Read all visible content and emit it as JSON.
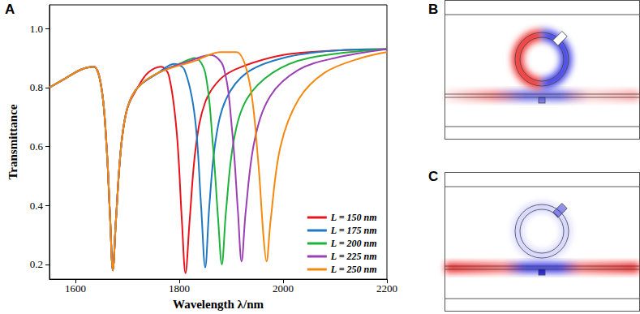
{
  "chart_data": {
    "type": "line",
    "xlabel": "Wavelength λ/nm",
    "ylabel": "Transmittance",
    "xlim": [
      1550,
      2200
    ],
    "xticks": [
      1600,
      1800,
      2000,
      2200
    ],
    "ylim": [
      0.15,
      1.08
    ],
    "yticks": [
      0.2,
      0.4,
      0.6,
      0.8,
      {
        "value": 1,
        "label": "1.0"
      }
    ],
    "grid": false,
    "legend": "lower right",
    "series": [
      {
        "name": "L = 150 nm",
        "color": "#e8141c",
        "x": [
          1550,
          1580,
          1610,
          1635,
          1650,
          1660,
          1667,
          1672,
          1678,
          1688,
          1700,
          1720,
          1740,
          1765,
          1780,
          1795,
          1805,
          1812,
          1820,
          1832,
          1850,
          1880,
          1920,
          2000,
          2100,
          2200
        ],
        "values": [
          0.8,
          0.83,
          0.86,
          0.87,
          0.8,
          0.6,
          0.35,
          0.18,
          0.35,
          0.6,
          0.73,
          0.8,
          0.85,
          0.87,
          0.84,
          0.65,
          0.35,
          0.17,
          0.35,
          0.6,
          0.75,
          0.83,
          0.87,
          0.91,
          0.925,
          0.93
        ]
      },
      {
        "name": "L = 175 nm",
        "color": "#1f78c1",
        "x": [
          1550,
          1580,
          1610,
          1635,
          1650,
          1660,
          1667,
          1672,
          1678,
          1688,
          1700,
          1720,
          1760,
          1790,
          1810,
          1830,
          1842,
          1850,
          1858,
          1870,
          1890,
          1930,
          2000,
          2100,
          2200
        ],
        "values": [
          0.8,
          0.83,
          0.86,
          0.87,
          0.8,
          0.6,
          0.35,
          0.18,
          0.35,
          0.6,
          0.73,
          0.8,
          0.85,
          0.88,
          0.86,
          0.7,
          0.4,
          0.19,
          0.4,
          0.62,
          0.76,
          0.85,
          0.9,
          0.925,
          0.93
        ]
      },
      {
        "name": "L = 200 nm",
        "color": "#1db33a",
        "x": [
          1550,
          1580,
          1610,
          1635,
          1650,
          1660,
          1667,
          1672,
          1678,
          1688,
          1700,
          1720,
          1760,
          1800,
          1830,
          1850,
          1865,
          1875,
          1882,
          1890,
          1905,
          1930,
          1980,
          2050,
          2200
        ],
        "values": [
          0.8,
          0.83,
          0.86,
          0.87,
          0.8,
          0.6,
          0.35,
          0.18,
          0.35,
          0.6,
          0.73,
          0.8,
          0.85,
          0.88,
          0.9,
          0.85,
          0.6,
          0.35,
          0.2,
          0.38,
          0.62,
          0.76,
          0.85,
          0.9,
          0.93
        ]
      },
      {
        "name": "L = 225 nm",
        "color": "#9b3fb5",
        "x": [
          1550,
          1580,
          1610,
          1635,
          1650,
          1660,
          1667,
          1672,
          1678,
          1688,
          1700,
          1720,
          1760,
          1820,
          1860,
          1885,
          1902,
          1913,
          1920,
          1928,
          1945,
          1975,
          2030,
          2100,
          2200
        ],
        "values": [
          0.8,
          0.83,
          0.86,
          0.87,
          0.8,
          0.6,
          0.35,
          0.18,
          0.35,
          0.6,
          0.73,
          0.8,
          0.85,
          0.89,
          0.91,
          0.87,
          0.65,
          0.38,
          0.21,
          0.38,
          0.62,
          0.77,
          0.86,
          0.9,
          0.93
        ]
      },
      {
        "name": "L = 250 nm",
        "color": "#f5890f",
        "x": [
          1550,
          1580,
          1610,
          1635,
          1650,
          1660,
          1667,
          1672,
          1678,
          1688,
          1700,
          1720,
          1760,
          1830,
          1880,
          1910,
          1935,
          1952,
          1962,
          1968,
          1976,
          1995,
          2030,
          2080,
          2150,
          2200
        ],
        "values": [
          0.8,
          0.83,
          0.86,
          0.87,
          0.8,
          0.6,
          0.35,
          0.18,
          0.35,
          0.6,
          0.73,
          0.8,
          0.85,
          0.89,
          0.92,
          0.92,
          0.82,
          0.55,
          0.3,
          0.21,
          0.35,
          0.6,
          0.76,
          0.85,
          0.9,
          0.92
        ]
      }
    ]
  },
  "panel_labels": [
    "A",
    "B",
    "C"
  ]
}
